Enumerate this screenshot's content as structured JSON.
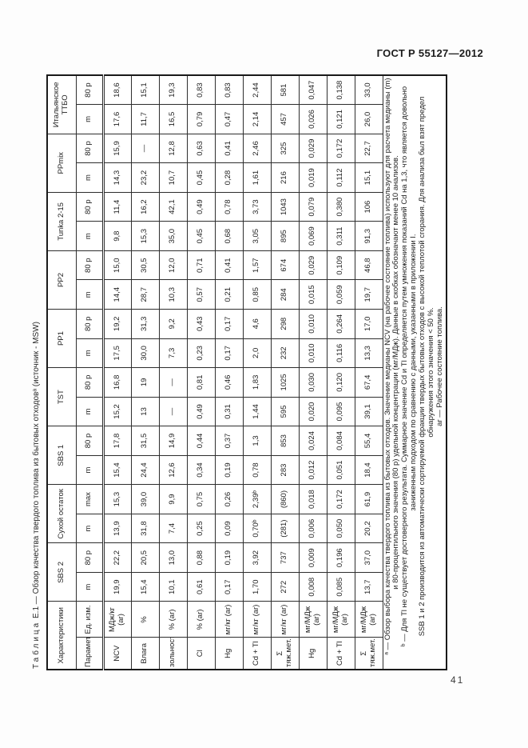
{
  "page": {
    "header": "ГОСТ Р 55127—2012",
    "page_number": "41"
  },
  "table": {
    "title": {
      "label": "Таблица",
      "rest": " Е.1 — Обзор качества твердого топлива из бытовых отходовᵃ (источник - MSW)"
    },
    "header": {
      "characteristics": "Характеристики",
      "parameters": "Параметры",
      "unit": "Ед. изм.",
      "groups": [
        {
          "name": "SBS 2",
          "sub": [
            "m",
            "80 p"
          ]
        },
        {
          "name": "Сухой остаток",
          "sub": [
            "m",
            "max"
          ]
        },
        {
          "name": "SBS 1",
          "sub": [
            "m",
            "80 p"
          ]
        },
        {
          "name": "TST",
          "sub": [
            "m",
            "80 p"
          ]
        },
        {
          "name": "PP1",
          "sub": [
            "m",
            "80 p"
          ]
        },
        {
          "name": "PP2",
          "sub": [
            "m",
            "80 p"
          ]
        },
        {
          "name": "Tunka 2-15",
          "sub": [
            "m",
            "80 p"
          ]
        },
        {
          "name": "PPmix",
          "sub": [
            "m",
            "80 p"
          ]
        },
        {
          "name": "Итальянское ТТБО",
          "sub": [
            "m",
            "80 p"
          ]
        }
      ]
    },
    "rows": [
      {
        "param": "NCV",
        "unit": "МДж/кг (ar)",
        "values": [
          "19,9",
          "22,2",
          "13,9",
          "15,3",
          "15,4",
          "17,8",
          "15,2",
          "16,8",
          "17,5",
          "19,2",
          "14,4",
          "15,0",
          "9,8",
          "11,4",
          "14,3",
          "15,9",
          "17,6",
          "18,6"
        ]
      },
      {
        "param": "Влага",
        "unit": "%",
        "values": [
          "15,4",
          "20,5",
          "31,8",
          "39,0",
          "24,4",
          "31,5",
          "13",
          "19",
          "30,0",
          "31,3",
          "28,7",
          "30,5",
          "15,3",
          "16,2",
          "23,2",
          "—",
          "11,7",
          "15,1"
        ]
      },
      {
        "param": "зольность",
        "unit": "% (ar)",
        "values": [
          "10,1",
          "13,0",
          "7,4",
          "9,9",
          "12,6",
          "14,9",
          "—",
          "—",
          "7,3",
          "9,2",
          "10,3",
          "12,0",
          "35,0",
          "42,1",
          "10,7",
          "12,8",
          "16,5",
          "19,3"
        ]
      },
      {
        "param": "Cl",
        "unit": "% (ar)",
        "values": [
          "0,61",
          "0,88",
          "0,25",
          "0,75",
          "0,34",
          "0,44",
          "0,49",
          "0,81",
          "0,23",
          "0,43",
          "0,57",
          "0,71",
          "0,45",
          "0,49",
          "0,45",
          "0,63",
          "0,79",
          "0,83"
        ]
      },
      {
        "param": "Hg",
        "unit": "мг/кг (ar)",
        "values": [
          "0,17",
          "0,19",
          "0,09",
          "0,26",
          "0,19",
          "0,37",
          "0,31",
          "0,46",
          "0,17",
          "0,17",
          "0,21",
          "0,41",
          "0,68",
          "0,78",
          "0,28",
          "0,41",
          "0,47",
          "0,83"
        ]
      },
      {
        "param": "Cd + Tl",
        "unit": "мг/кг (ar)",
        "values": [
          "1,70",
          "3,92",
          "0,70ᵇ",
          "2,39ᵇ",
          "0,78",
          "1,3",
          "1,44",
          "1,83",
          "2,0",
          "4,6",
          "0,85",
          "1,57",
          "3,05",
          "3,73",
          "1,61",
          "2,46",
          "2,14",
          "2,44"
        ]
      },
      {
        "param": "Σ тяж.мет.",
        "unit": "мг/кг (ar)",
        "values": [
          "272",
          "737",
          "(281)",
          "(860)",
          "283",
          "853",
          "595",
          "1025",
          "232",
          "298",
          "284",
          "674",
          "895",
          "1043",
          "216",
          "325",
          "457",
          "581"
        ]
      },
      {
        "param": "Hg",
        "unit": "мг/МДж (ar)",
        "values": [
          "0,008",
          "0,009",
          "0,006",
          "0,018",
          "0,012",
          "0,024",
          "0,020",
          "0,030",
          "0,010",
          "0,010",
          "0,015",
          "0,029",
          "0,069",
          "0,079",
          "0,019",
          "0,029",
          "0,026",
          "0,047"
        ]
      },
      {
        "param": "Cd + Tl",
        "unit": "мг/МДж (ar)",
        "values": [
          "0,085",
          "0,196",
          "0,050",
          "0,172",
          "0,051",
          "0,084",
          "0,095",
          "0,120",
          "0,116",
          "0,264",
          "0,059",
          "0,109",
          "0,311",
          "0,380",
          "0,112",
          "0,172",
          "0,121",
          "0,138"
        ]
      },
      {
        "param": "Σ тяж.мет.",
        "unit": "мг/МДж (ar)",
        "values": [
          "13,7",
          "37,0",
          "20,2",
          "61,9",
          "18,4",
          "55,4",
          "39,1",
          "67,4",
          "13,3",
          "17,0",
          "19,7",
          "46,8",
          "91,3",
          "106",
          "15,1",
          "22,7",
          "26,0",
          "33,0"
        ]
      }
    ],
    "footnotes": [
      "ᵃ — Обзор выбора качества твердого топлива из бытовых отходов. Значение медианы NCV (на рабочее состояние топлива) используют для расчета медианы (m) и 80-процентильного значения (80 p) удельной концентрации (мг/МДж). Данные в скобках обозначают менее 10 анализов.",
      "ᵇ — Для Tl не существует достоверного результата. Суммарное значение Cd и Tl определяется путем умножения показаний Cd на 1,3, что является довольно заниженным подходом по сравнению с данными, указанными в приложении I.",
      "SSB 1 и 2 производится из автоматически сортируемой фракции твердых бытовых отходов с высокой теплотой сгорания. Для анализа был взят предел обнаружения этого значения < 50 %.",
      "ar — Рабочее состояние топлива."
    ]
  }
}
